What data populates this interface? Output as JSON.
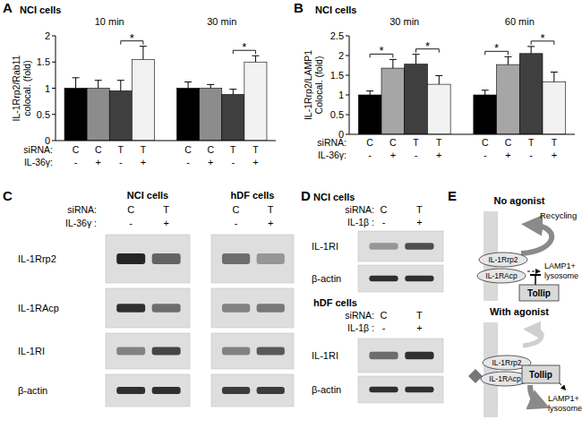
{
  "chart_data": [
    {
      "type": "bar",
      "panel_label": "A",
      "title": "NCI cells",
      "y_label": [
        "IL-1Rrp2/Rab11",
        "colocal. (fold)"
      ],
      "categories": [
        "C",
        "C",
        "T",
        "T",
        "C",
        "C",
        "T",
        "T"
      ],
      "categories_label": "siRNA:",
      "categories_2": [
        "-",
        "+",
        "-",
        "+",
        "-",
        "+",
        "-",
        "+"
      ],
      "categories_2_label": "IL-36γ:",
      "groups": [
        {
          "label": "10 min",
          "start": 0,
          "end": 3
        },
        {
          "label": "30 min",
          "start": 4,
          "end": 7
        }
      ],
      "values": [
        1.0,
        1.0,
        0.95,
        1.55,
        1.0,
        1.0,
        0.88,
        1.5
      ],
      "errors": [
        0.2,
        0.15,
        0.2,
        0.25,
        0.12,
        0.07,
        0.1,
        0.12
      ],
      "colors": [
        "#000000",
        "#8c8c8c",
        "#3f3f3f",
        "#f2f2f2",
        "#000000",
        "#8c8c8c",
        "#3f3f3f",
        "#f2f2f2"
      ],
      "ylim": [
        0,
        2
      ],
      "yticks": [
        0,
        0.5,
        1,
        1.5,
        2
      ],
      "annotations": [
        {
          "text": "*",
          "bars": [
            2,
            3
          ]
        },
        {
          "text": "*",
          "bars": [
            6,
            7
          ]
        }
      ]
    },
    {
      "type": "bar",
      "panel_label": "B",
      "title": "NCI cells",
      "y_label": [
        "IL-1Rrp2/LAMP1",
        "Colocal. (fold)"
      ],
      "categories": [
        "C",
        "C",
        "T",
        "T",
        "C",
        "C",
        "T",
        "T"
      ],
      "categories_label": "siRNA:",
      "categories_2": [
        "-",
        "+",
        "-",
        "+",
        "-",
        "+",
        "-",
        "+"
      ],
      "categories_2_label": "IL-36γ:",
      "groups": [
        {
          "label": "30 min",
          "start": 0,
          "end": 3
        },
        {
          "label": "60 min",
          "start": 4,
          "end": 7
        }
      ],
      "values": [
        1.0,
        1.68,
        1.78,
        1.27,
        1.0,
        1.77,
        2.05,
        1.33
      ],
      "errors": [
        0.1,
        0.22,
        0.25,
        0.22,
        0.12,
        0.2,
        0.18,
        0.25
      ],
      "colors": [
        "#000000",
        "#a6a6a6",
        "#3f3f3f",
        "#f2f2f2",
        "#000000",
        "#a6a6a6",
        "#3f3f3f",
        "#f2f2f2"
      ],
      "ylim": [
        0,
        2.5
      ],
      "yticks": [
        0,
        0.5,
        1,
        1.5,
        2,
        2.5
      ],
      "annotations": [
        {
          "text": "*",
          "bars": [
            0,
            1
          ]
        },
        {
          "text": "*",
          "bars": [
            2,
            3
          ]
        },
        {
          "text": "*",
          "bars": [
            4,
            5
          ]
        },
        {
          "text": "*",
          "bars": [
            6,
            7
          ]
        }
      ]
    }
  ],
  "blots": [
    {
      "panel_label": "C",
      "sections": [
        {
          "conditions": [
            "siRNA:",
            "IL-36γ :"
          ],
          "rows": [
            "IL-1Rrp2",
            "IL-1RAcp",
            "IL-1RI",
            "β-actin"
          ],
          "groups": [
            {
              "title": "NCI cells",
              "condition_values": [
                [
                  "C",
                  "T"
                ],
                [
                  "-",
                  "+"
                ]
              ],
              "intensity": [
                [
                  0.9,
                  0.6
                ],
                [
                  0.85,
                  0.55
                ],
                [
                  0.45,
                  0.75
                ],
                [
                  0.85,
                  0.85
                ]
              ]
            },
            {
              "title": "hDF cells",
              "condition_values": [
                [
                  "C",
                  "T"
                ],
                [
                  "-",
                  "+"
                ]
              ],
              "intensity": [
                [
                  0.55,
                  0.35
                ],
                [
                  0.45,
                  0.5
                ],
                [
                  0.45,
                  0.65
                ],
                [
                  0.8,
                  0.8
                ]
              ]
            }
          ]
        }
      ]
    },
    {
      "panel_label": "D",
      "sections": [
        {
          "conditions": [
            "siRNA:",
            "IL-1β :"
          ],
          "rows": [
            "IL-1RI",
            "β-actin"
          ],
          "groups": [
            {
              "title": "NCI cells",
              "condition_values": [
                [
                  "C",
                  "T"
                ],
                [
                  "-",
                  "+"
                ]
              ],
              "intensity": [
                [
                  0.35,
                  0.7
                ],
                [
                  0.85,
                  0.85
                ]
              ]
            }
          ]
        },
        {
          "conditions": [
            "siRNA:",
            "IL-1β :"
          ],
          "rows": [
            "IL-1RI",
            "β-actin"
          ],
          "groups": [
            {
              "title": "hDF cells",
              "condition_values": [
                [
                  "C",
                  "T"
                ],
                [
                  "-",
                  "+"
                ]
              ],
              "intensity": [
                [
                  0.55,
                  0.85
                ],
                [
                  0.85,
                  0.85
                ]
              ]
            }
          ]
        }
      ]
    }
  ],
  "diagram": {
    "panel_label": "E",
    "states": [
      {
        "title": "No agonist",
        "recycling": "Recycling",
        "receptors": [
          "IL-1Rrp2",
          "IL-1RAcp"
        ],
        "regulator": "Tollip",
        "destination": [
          "LAMP1+",
          "lysosome"
        ]
      },
      {
        "title": "With agonist",
        "receptors": [
          "IL-1Rrp2",
          "IL-1RAcp"
        ],
        "regulator": "Tollip",
        "destination": [
          "LAMP1+",
          "lysosome"
        ]
      }
    ]
  }
}
